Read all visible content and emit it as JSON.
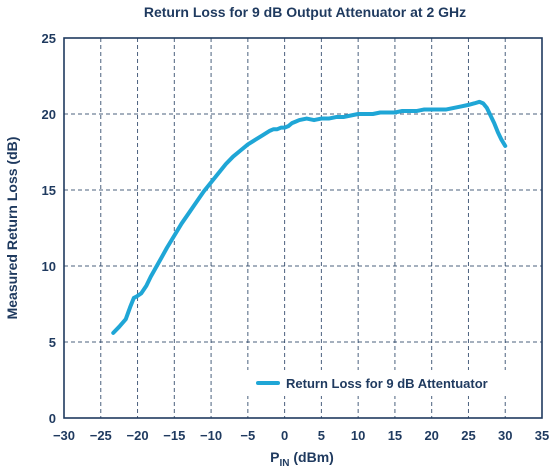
{
  "chart_data": {
    "type": "line",
    "title": "Return Loss for 9 dB Output Attenuator at 2 GHz",
    "xlabel": {
      "main": "P",
      "sub": "IN",
      "unit": " (dBm)"
    },
    "ylabel": "Measured Return Loss (dB)",
    "xlim": [
      -30,
      35
    ],
    "ylim": [
      0,
      25
    ],
    "xticks": [
      -30,
      -25,
      -20,
      -15,
      -10,
      -5,
      0,
      5,
      10,
      15,
      20,
      25,
      30,
      35
    ],
    "yticks": [
      0,
      5,
      10,
      15,
      20,
      25
    ],
    "xtick_labels": [
      "−30",
      "−25",
      "−20",
      "−15",
      "−10",
      "−5",
      "0",
      "5",
      "10",
      "15",
      "20",
      "25",
      "30",
      "35"
    ],
    "ytick_labels": [
      "0",
      "5",
      "10",
      "15",
      "20",
      "25"
    ],
    "grid": true,
    "legend_position": "bottom-right",
    "series": [
      {
        "name": "Return Loss for 9 dB Attentuator",
        "color": "#1fa6d6",
        "x": [
          -23.3,
          -22.5,
          -21.6,
          -21.0,
          -20.5,
          -20.1,
          -19.5,
          -18.8,
          -18.2,
          -17.5,
          -16.8,
          -16.0,
          -15.0,
          -14.0,
          -13.0,
          -12.0,
          -11.0,
          -10.0,
          -9.0,
          -8.0,
          -7.0,
          -6.0,
          -5.0,
          -4.0,
          -3.0,
          -2.0,
          -1.5,
          -1.0,
          -0.5,
          0.0,
          0.5,
          1.0,
          1.5,
          2.0,
          3.0,
          4.0,
          5.0,
          6.0,
          7.0,
          8.0,
          9.0,
          10.0,
          11.0,
          12.0,
          13.0,
          14.0,
          15.0,
          16.0,
          17.0,
          18.0,
          19.0,
          20.0,
          21.0,
          22.0,
          23.0,
          24.0,
          25.0,
          25.8,
          26.5,
          27.0,
          27.5,
          28.0,
          28.5,
          29.0,
          29.5,
          30.0
        ],
        "y": [
          5.6,
          6.0,
          6.5,
          7.3,
          7.9,
          8.0,
          8.2,
          8.7,
          9.3,
          9.9,
          10.5,
          11.2,
          12.0,
          12.8,
          13.5,
          14.2,
          14.9,
          15.5,
          16.1,
          16.7,
          17.2,
          17.6,
          18.0,
          18.3,
          18.6,
          18.9,
          19.0,
          19.0,
          19.1,
          19.1,
          19.2,
          19.4,
          19.5,
          19.6,
          19.7,
          19.6,
          19.7,
          19.7,
          19.8,
          19.8,
          19.9,
          20.0,
          20.0,
          20.0,
          20.1,
          20.1,
          20.1,
          20.2,
          20.2,
          20.2,
          20.3,
          20.3,
          20.3,
          20.3,
          20.4,
          20.5,
          20.6,
          20.7,
          20.8,
          20.7,
          20.4,
          19.9,
          19.4,
          18.8,
          18.3,
          17.9
        ]
      }
    ]
  }
}
